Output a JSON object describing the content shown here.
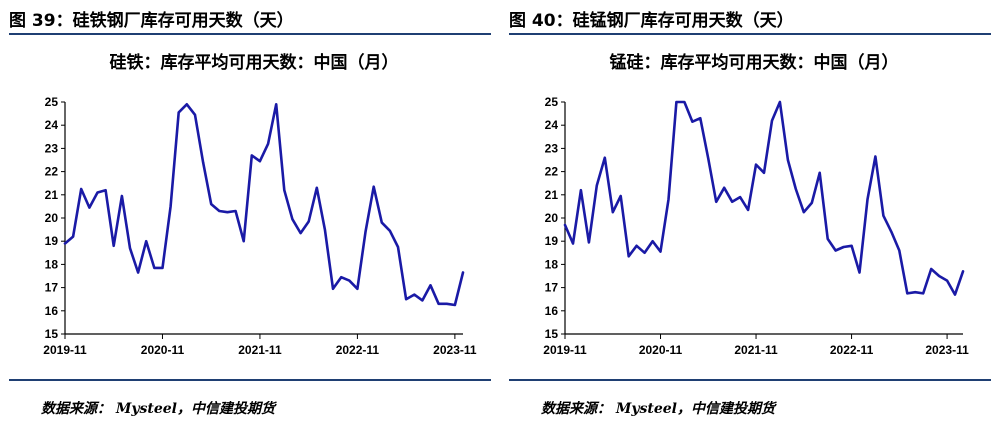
{
  "panels": [
    {
      "figure_title": "图 39：硅铁钢厂库存可用天数（天）",
      "source": "数据来源： Mysteel，中信建投期货"
    },
    {
      "figure_title": "图 40：硅锰钢厂库存可用天数（天）",
      "source": "数据来源： Mysteel，中信建投期货"
    }
  ],
  "chart_data": [
    {
      "type": "line",
      "title": "硅铁：库存平均可用天数：中国（月）",
      "xlabel": "",
      "ylabel": "",
      "ylim": [
        15,
        25
      ],
      "yticks": [
        15,
        16,
        17,
        18,
        19,
        20,
        21,
        22,
        23,
        24,
        25
      ],
      "xticks": [
        "2019-11",
        "2020-11",
        "2021-11",
        "2022-11",
        "2023-11"
      ],
      "x_start": "2019-11",
      "color": "#1a1aa6",
      "grid": false,
      "series": [
        {
          "values": [
            18.9,
            19.2,
            21.25,
            20.45,
            21.1,
            21.2,
            18.8,
            20.95,
            18.7,
            17.65,
            19.0,
            17.85,
            17.85,
            20.5,
            24.55,
            24.9,
            24.45,
            22.4,
            20.6,
            20.3,
            20.25,
            20.3,
            19.0,
            22.7,
            22.45,
            23.2,
            24.9,
            21.2,
            19.95,
            19.35,
            19.85,
            21.3,
            19.5,
            16.95,
            17.45,
            17.3,
            16.95,
            19.4,
            21.35,
            19.8,
            19.45,
            18.75,
            16.5,
            16.7,
            16.45,
            17.1,
            16.3,
            16.3,
            16.25,
            17.65
          ]
        }
      ]
    },
    {
      "type": "line",
      "title": "锰硅：库存平均可用天数：中国（月）",
      "xlabel": "",
      "ylabel": "",
      "ylim": [
        15,
        25
      ],
      "yticks": [
        15,
        16,
        17,
        18,
        19,
        20,
        21,
        22,
        23,
        24,
        25
      ],
      "xticks": [
        "2019-11",
        "2020-11",
        "2021-11",
        "2022-11",
        "2023-11"
      ],
      "x_start": "2019-11",
      "color": "#1a1aa6",
      "grid": false,
      "series": [
        {
          "values": [
            19.7,
            18.9,
            21.2,
            18.95,
            21.4,
            22.6,
            20.25,
            20.95,
            18.35,
            18.8,
            18.5,
            19.0,
            18.55,
            20.8,
            25.0,
            25.0,
            24.15,
            24.3,
            22.55,
            20.7,
            21.3,
            20.7,
            20.9,
            20.35,
            22.3,
            21.95,
            24.2,
            25.0,
            22.5,
            21.25,
            20.25,
            20.65,
            21.95,
            19.1,
            18.6,
            18.75,
            18.8,
            17.65,
            20.8,
            22.65,
            20.1,
            19.4,
            18.6,
            16.75,
            16.8,
            16.75,
            17.8,
            17.5,
            17.3,
            16.7,
            17.7
          ]
        }
      ]
    }
  ]
}
